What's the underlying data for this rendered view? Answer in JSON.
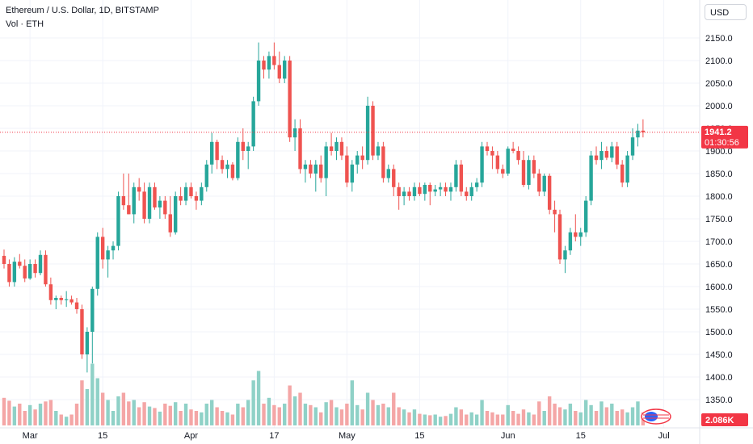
{
  "header": {
    "title": "Ethereum / U.S. Dollar, 1D, BITSTAMP",
    "volume_label": "Vol · ETH",
    "currency": "USD"
  },
  "price_badge": {
    "price": "1941.2",
    "countdown": "01:30:56"
  },
  "volume_badge": "2.086K",
  "colors": {
    "up": "#26a69a",
    "down": "#ef5350",
    "vol_up": "#8fd1c7",
    "vol_down": "#f4a6a6",
    "grid": "#f0f3fa",
    "badge_bg": "#f23645"
  },
  "chart_data": {
    "type": "candlestick",
    "title": "Ethereum / U.S. Dollar, 1D, BITSTAMP",
    "y_axis_ticks": [
      "2150.0",
      "2100.0",
      "2050.0",
      "2000.0",
      "1950.0",
      "1900.0",
      "1850.0",
      "1800.0",
      "1750.0",
      "1700.0",
      "1650.0",
      "1600.0",
      "1550.0",
      "1500.0",
      "1450.0",
      "1400.0",
      "1350.0"
    ],
    "x_axis_ticks": [
      {
        "label": "Mar",
        "index": 5
      },
      {
        "label": "15",
        "index": 19
      },
      {
        "label": "Apr",
        "index": 36
      },
      {
        "label": "17",
        "index": 52
      },
      {
        "label": "May",
        "index": 66
      },
      {
        "label": "15",
        "index": 80
      },
      {
        "label": "Jun",
        "index": 97
      },
      {
        "label": "15",
        "index": 111
      },
      {
        "label": "Jul",
        "index": 127
      }
    ],
    "last_price": 1941.2,
    "candles": [
      [
        1668,
        1682,
        1640,
        1650,
        0.38
      ],
      [
        1650,
        1660,
        1600,
        1610,
        0.34
      ],
      [
        1610,
        1665,
        1600,
        1655,
        0.26
      ],
      [
        1655,
        1672,
        1640,
        1646,
        0.3
      ],
      [
        1646,
        1660,
        1610,
        1618,
        0.2
      ],
      [
        1618,
        1660,
        1615,
        1650,
        0.28
      ],
      [
        1650,
        1660,
        1620,
        1630,
        0.22
      ],
      [
        1630,
        1680,
        1625,
        1670,
        0.3
      ],
      [
        1670,
        1680,
        1600,
        1605,
        0.33
      ],
      [
        1605,
        1620,
        1560,
        1570,
        0.35
      ],
      [
        1570,
        1580,
        1550,
        1575,
        0.2
      ],
      [
        1575,
        1580,
        1560,
        1570,
        0.15
      ],
      [
        1570,
        1590,
        1555,
        1572,
        0.12
      ],
      [
        1572,
        1580,
        1560,
        1565,
        0.15
      ],
      [
        1565,
        1575,
        1540,
        1550,
        0.3
      ],
      [
        1550,
        1560,
        1440,
        1450,
        0.62
      ],
      [
        1450,
        1510,
        1410,
        1500,
        0.5
      ],
      [
        1500,
        1600,
        1430,
        1595,
        0.85
      ],
      [
        1595,
        1720,
        1580,
        1710,
        0.65
      ],
      [
        1710,
        1730,
        1640,
        1660,
        0.45
      ],
      [
        1660,
        1690,
        1620,
        1680,
        0.35
      ],
      [
        1680,
        1700,
        1660,
        1690,
        0.2
      ],
      [
        1690,
        1810,
        1680,
        1800,
        0.4
      ],
      [
        1800,
        1850,
        1770,
        1780,
        0.45
      ],
      [
        1780,
        1850,
        1760,
        1760,
        0.33
      ],
      [
        1760,
        1830,
        1740,
        1820,
        0.35
      ],
      [
        1820,
        1840,
        1790,
        1810,
        0.25
      ],
      [
        1810,
        1830,
        1740,
        1750,
        0.32
      ],
      [
        1750,
        1830,
        1740,
        1820,
        0.26
      ],
      [
        1820,
        1830,
        1770,
        1775,
        0.24
      ],
      [
        1775,
        1800,
        1750,
        1790,
        0.19
      ],
      [
        1790,
        1800,
        1750,
        1760,
        0.3
      ],
      [
        1760,
        1800,
        1710,
        1720,
        0.27
      ],
      [
        1720,
        1810,
        1715,
        1800,
        0.32
      ],
      [
        1800,
        1820,
        1780,
        1790,
        0.2
      ],
      [
        1790,
        1830,
        1780,
        1820,
        0.3
      ],
      [
        1820,
        1830,
        1795,
        1800,
        0.22
      ],
      [
        1800,
        1810,
        1770,
        1790,
        0.2
      ],
      [
        1790,
        1830,
        1780,
        1820,
        0.18
      ],
      [
        1820,
        1880,
        1810,
        1870,
        0.3
      ],
      [
        1870,
        1940,
        1850,
        1920,
        0.35
      ],
      [
        1920,
        1925,
        1860,
        1880,
        0.25
      ],
      [
        1880,
        1890,
        1850,
        1860,
        0.2
      ],
      [
        1860,
        1880,
        1840,
        1870,
        0.18
      ],
      [
        1870,
        1875,
        1835,
        1840,
        0.15
      ],
      [
        1840,
        1930,
        1835,
        1920,
        0.3
      ],
      [
        1920,
        1950,
        1880,
        1900,
        0.25
      ],
      [
        1900,
        1920,
        1860,
        1910,
        0.35
      ],
      [
        1910,
        2020,
        1900,
        2010,
        0.62
      ],
      [
        2010,
        2140,
        2000,
        2100,
        0.75
      ],
      [
        2100,
        2110,
        2060,
        2080,
        0.3
      ],
      [
        2080,
        2120,
        2060,
        2110,
        0.38
      ],
      [
        2110,
        2140,
        2080,
        2090,
        0.28
      ],
      [
        2090,
        2120,
        2050,
        2060,
        0.25
      ],
      [
        2060,
        2110,
        2050,
        2100,
        0.3
      ],
      [
        2100,
        2110,
        1920,
        1930,
        0.55
      ],
      [
        1930,
        1970,
        1900,
        1950,
        0.4
      ],
      [
        1950,
        1970,
        1850,
        1860,
        0.45
      ],
      [
        1860,
        1880,
        1830,
        1870,
        0.3
      ],
      [
        1870,
        1880,
        1840,
        1850,
        0.28
      ],
      [
        1850,
        1880,
        1810,
        1870,
        0.25
      ],
      [
        1870,
        1890,
        1830,
        1840,
        0.18
      ],
      [
        1840,
        1920,
        1800,
        1910,
        0.32
      ],
      [
        1910,
        1940,
        1890,
        1900,
        0.35
      ],
      [
        1900,
        1930,
        1880,
        1920,
        0.25
      ],
      [
        1920,
        1930,
        1880,
        1890,
        0.22
      ],
      [
        1890,
        1910,
        1820,
        1830,
        0.3
      ],
      [
        1830,
        1880,
        1810,
        1870,
        0.62
      ],
      [
        1870,
        1900,
        1850,
        1890,
        0.28
      ],
      [
        1890,
        1910,
        1860,
        1880,
        0.22
      ],
      [
        1880,
        2020,
        1870,
        2000,
        0.45
      ],
      [
        2000,
        2010,
        1880,
        1890,
        0.35
      ],
      [
        1890,
        1920,
        1880,
        1910,
        0.28
      ],
      [
        1910,
        1920,
        1830,
        1840,
        0.3
      ],
      [
        1840,
        1870,
        1830,
        1860,
        0.25
      ],
      [
        1860,
        1870,
        1800,
        1820,
        0.45
      ],
      [
        1820,
        1830,
        1770,
        1800,
        0.25
      ],
      [
        1800,
        1820,
        1780,
        1810,
        0.22
      ],
      [
        1810,
        1820,
        1790,
        1800,
        0.18
      ],
      [
        1800,
        1830,
        1790,
        1820,
        0.22
      ],
      [
        1820,
        1830,
        1800,
        1805,
        0.16
      ],
      [
        1805,
        1830,
        1790,
        1825,
        0.15
      ],
      [
        1825,
        1830,
        1780,
        1810,
        0.14
      ],
      [
        1810,
        1825,
        1800,
        1815,
        0.15
      ],
      [
        1815,
        1830,
        1800,
        1820,
        0.12
      ],
      [
        1820,
        1830,
        1800,
        1810,
        0.13
      ],
      [
        1810,
        1830,
        1790,
        1820,
        0.16
      ],
      [
        1820,
        1880,
        1810,
        1870,
        0.25
      ],
      [
        1870,
        1880,
        1800,
        1810,
        0.22
      ],
      [
        1810,
        1820,
        1790,
        1800,
        0.15
      ],
      [
        1800,
        1830,
        1790,
        1820,
        0.18
      ],
      [
        1820,
        1840,
        1810,
        1830,
        0.15
      ],
      [
        1830,
        1920,
        1820,
        1910,
        0.35
      ],
      [
        1910,
        1920,
        1890,
        1900,
        0.2
      ],
      [
        1900,
        1910,
        1860,
        1890,
        0.18
      ],
      [
        1890,
        1900,
        1850,
        1860,
        0.15
      ],
      [
        1860,
        1870,
        1840,
        1850,
        0.15
      ],
      [
        1850,
        1910,
        1845,
        1905,
        0.28
      ],
      [
        1905,
        1920,
        1895,
        1900,
        0.2
      ],
      [
        1900,
        1910,
        1870,
        1880,
        0.16
      ],
      [
        1880,
        1900,
        1820,
        1825,
        0.22
      ],
      [
        1825,
        1890,
        1815,
        1880,
        0.18
      ],
      [
        1880,
        1890,
        1840,
        1850,
        0.15
      ],
      [
        1850,
        1860,
        1800,
        1810,
        0.33
      ],
      [
        1810,
        1850,
        1800,
        1845,
        0.2
      ],
      [
        1845,
        1850,
        1760,
        1770,
        0.4
      ],
      [
        1770,
        1790,
        1720,
        1760,
        0.3
      ],
      [
        1760,
        1770,
        1650,
        1660,
        0.25
      ],
      [
        1660,
        1690,
        1630,
        1680,
        0.22
      ],
      [
        1680,
        1730,
        1670,
        1720,
        0.3
      ],
      [
        1720,
        1760,
        1700,
        1710,
        0.2
      ],
      [
        1710,
        1730,
        1690,
        1720,
        0.18
      ],
      [
        1720,
        1800,
        1710,
        1790,
        0.35
      ],
      [
        1790,
        1900,
        1780,
        1890,
        0.28
      ],
      [
        1890,
        1910,
        1870,
        1880,
        0.2
      ],
      [
        1880,
        1920,
        1860,
        1900,
        0.33
      ],
      [
        1900,
        1910,
        1880,
        1885,
        0.25
      ],
      [
        1885,
        1920,
        1875,
        1910,
        0.3
      ],
      [
        1910,
        1920,
        1860,
        1870,
        0.2
      ],
      [
        1870,
        1880,
        1820,
        1830,
        0.22
      ],
      [
        1830,
        1900,
        1820,
        1890,
        0.18
      ],
      [
        1890,
        1950,
        1880,
        1930,
        0.25
      ],
      [
        1930,
        1960,
        1910,
        1945,
        0.33
      ],
      [
        1945,
        1970,
        1930,
        1941.2,
        0.18
      ]
    ]
  }
}
